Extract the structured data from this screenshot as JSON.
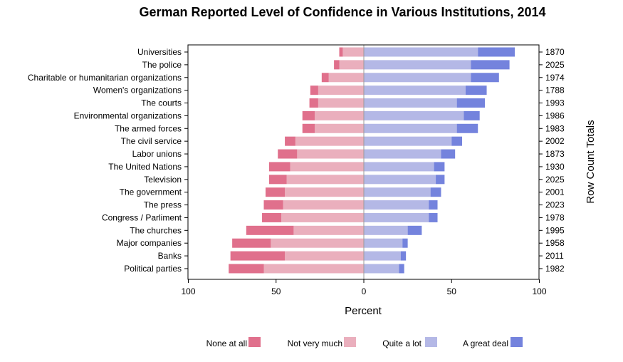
{
  "chart_data": {
    "type": "bar",
    "orientation": "horizontal",
    "layout": "diverging-stacked",
    "title": "German Reported Level of Confidence in Various Institutions, 2014",
    "xlabel": "Percent",
    "ylabel_right": "Row Count Totals",
    "xlim": [
      -100,
      100
    ],
    "x_ticks": [
      -100,
      -50,
      0,
      50,
      100
    ],
    "x_tick_labels": [
      "100",
      "50",
      "0",
      "50",
      "100"
    ],
    "grid": false,
    "legend_position": "bottom",
    "categories": [
      "Universities",
      "The police",
      "Charitable or humanitarian organizations",
      "Women's organizations",
      "The courts",
      "Environmental organizations",
      "The armed forces",
      "The civil service",
      "Labor unions",
      "The United Nations",
      "Television",
      "The government",
      "The press",
      "Congress / Parliment",
      "The churches",
      "Major companies",
      "Banks",
      "Political parties"
    ],
    "row_totals": [
      "1870",
      "2025",
      "1974",
      "1788",
      "1993",
      "1986",
      "1983",
      "2002",
      "1873",
      "1930",
      "2025",
      "2001",
      "2023",
      "1978",
      "1995",
      "1958",
      "2011",
      "1982"
    ],
    "series": [
      {
        "name": "None at all",
        "side": "negative",
        "color": "#E0708C",
        "values": [
          2,
          3,
          4,
          4.5,
          5,
          7,
          7,
          6,
          11,
          12,
          10,
          11,
          11,
          11,
          27,
          22,
          31,
          20
        ]
      },
      {
        "name": "Not very much",
        "side": "negative",
        "color": "#EAAFBD",
        "values": [
          12,
          14,
          20,
          26,
          26,
          28,
          28,
          39,
          38,
          42,
          44,
          45,
          46,
          47,
          40,
          53,
          45,
          57
        ]
      },
      {
        "name": "Quite a lot",
        "side": "positive",
        "color": "#B4B8E6",
        "values": [
          65,
          61,
          61,
          58,
          53,
          57,
          53,
          50,
          44,
          40,
          41,
          38,
          37,
          37,
          25,
          22,
          21,
          20
        ]
      },
      {
        "name": "A great deal",
        "side": "positive",
        "color": "#7483DD",
        "values": [
          21,
          22,
          16,
          12,
          16,
          9,
          12,
          6,
          8,
          6,
          5,
          6,
          5,
          5,
          8,
          3,
          3,
          3
        ]
      }
    ]
  }
}
